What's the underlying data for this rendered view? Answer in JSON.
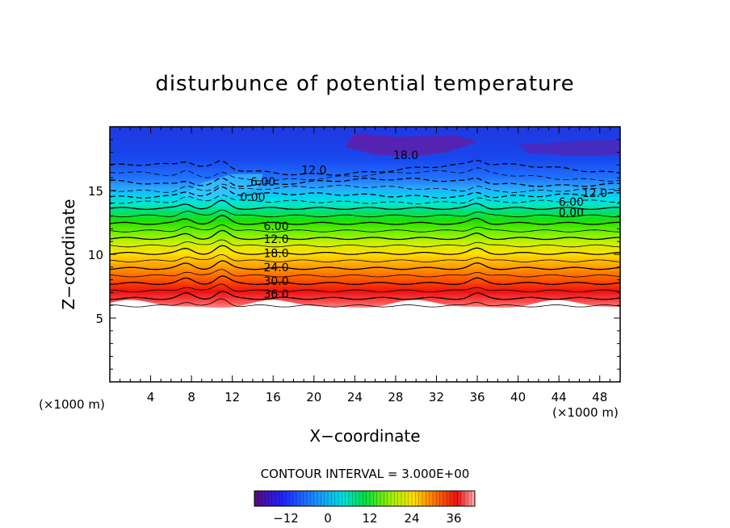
{
  "chart_data": {
    "type": "heatmap",
    "title": "disturbunce of potential temperature",
    "xlabel": "X−coordinate",
    "ylabel": "Z−coordinate",
    "x_unit_label": "(×1000 m)",
    "z_unit_label": "(×1000 m)",
    "xlim": [
      0,
      50
    ],
    "ylim": [
      0,
      20
    ],
    "x_ticks": [
      4,
      8,
      12,
      16,
      20,
      24,
      28,
      32,
      36,
      40,
      44,
      48
    ],
    "y_ticks": [
      5,
      10,
      15
    ],
    "contour_interval_text": "CONTOUR INTERVAL = 3.000E+00",
    "contour_interval": 3,
    "negative_contours_dashed": true,
    "colorbar": {
      "range": [
        -21,
        42
      ],
      "ticks": [
        -12,
        0,
        12,
        24,
        36
      ],
      "colormap": "rainbow (purple to red)"
    },
    "contour_labels": [
      {
        "text": "36.0",
        "x": 16.3,
        "z": 6.9
      },
      {
        "text": "30.0",
        "x": 16.3,
        "z": 7.9
      },
      {
        "text": "24.0",
        "x": 16.3,
        "z": 9.0
      },
      {
        "text": "18.0",
        "x": 16.3,
        "z": 10.1
      },
      {
        "text": "12.0",
        "x": 16.3,
        "z": 11.2
      },
      {
        "text": "6.00",
        "x": 16.3,
        "z": 12.2
      },
      {
        "text": "0.00",
        "x": 14.0,
        "z": 14.5
      },
      {
        "text": "6.00",
        "x": 15.0,
        "z": 15.7
      },
      {
        "text": "12.0",
        "x": 20.0,
        "z": 16.6
      },
      {
        "text": "18.0",
        "x": 29.0,
        "z": 17.8
      },
      {
        "text": "12.0",
        "x": 47.5,
        "z": 14.8
      },
      {
        "text": "6.00",
        "x": 45.2,
        "z": 14.1
      },
      {
        "text": "0.00",
        "x": 45.2,
        "z": 13.3
      }
    ]
  }
}
